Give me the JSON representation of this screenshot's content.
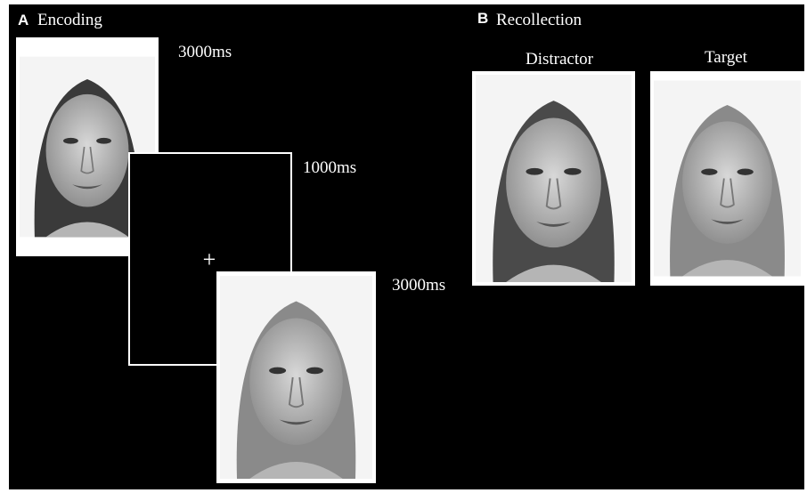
{
  "panel_a": {
    "letter": "A",
    "title": "Encoding",
    "timings": [
      "3000ms",
      "1000ms",
      "3000ms"
    ],
    "fixation": "+"
  },
  "panel_b": {
    "letter": "B",
    "title": "Recollection",
    "labels": [
      "Distractor",
      "Target"
    ]
  }
}
